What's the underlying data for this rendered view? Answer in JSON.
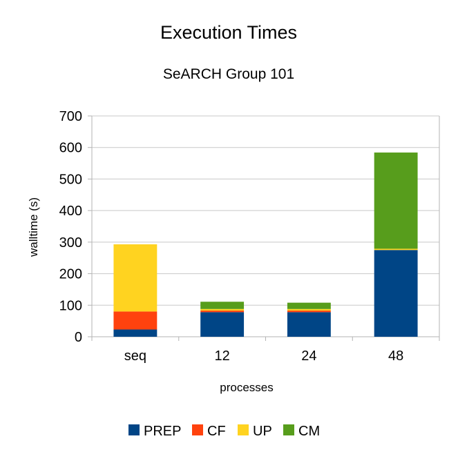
{
  "chart_data": {
    "type": "bar",
    "stacked": true,
    "title": "Execution Times",
    "subtitle": "SeARCH Group 101",
    "xlabel": "processes",
    "ylabel": "walltime (s)",
    "ylim": [
      0,
      700
    ],
    "yticks": [
      0,
      100,
      200,
      300,
      400,
      500,
      600,
      700
    ],
    "grid": true,
    "legend_position": "bottom",
    "categories": [
      "seq",
      "12",
      "24",
      "48"
    ],
    "series": [
      {
        "name": "PREP",
        "color": "#004586",
        "values": [
          23,
          78,
          78,
          275
        ]
      },
      {
        "name": "CF",
        "color": "#ff420e",
        "values": [
          57,
          5,
          5,
          0
        ]
      },
      {
        "name": "UP",
        "color": "#ffd320",
        "values": [
          213,
          5,
          5,
          4
        ]
      },
      {
        "name": "CM",
        "color": "#579d1c",
        "values": [
          0,
          23,
          20,
          305
        ]
      }
    ]
  }
}
